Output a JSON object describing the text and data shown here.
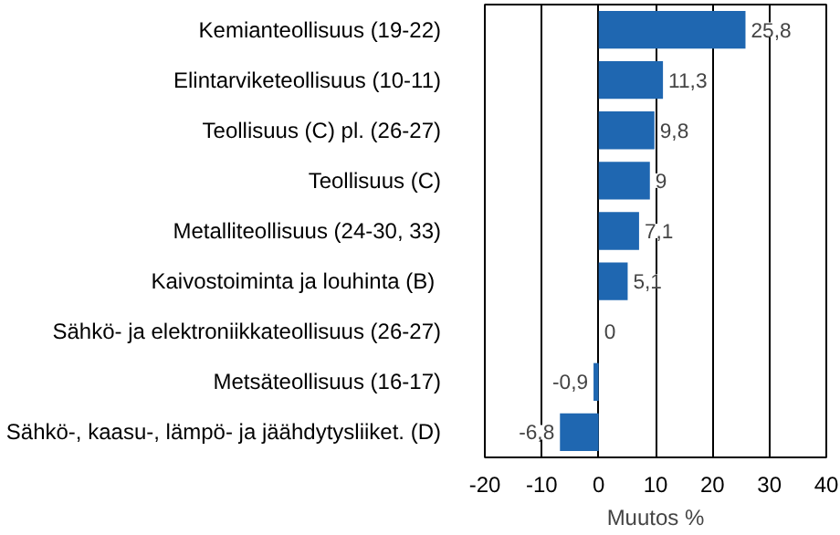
{
  "chart_data": {
    "type": "bar",
    "orientation": "horizontal",
    "xlabel": "Muutos %",
    "categories": [
      "Kemianteollisuus (19-22)",
      "Elintarviketeollisuus (10-11)",
      "Teollisuus (C) pl. (26-27)",
      "Teollisuus (C)",
      "Metalliteollisuus (24-30, 33)",
      "Kaivostoiminta  ja louhinta (B)",
      "Sähkö- ja elektroniikkateollisuus (26-27)",
      "Metsäteollisuus (16-17)",
      "Sähkö-, kaasu-, lämpö- ja jäähdytysliiket. (D)"
    ],
    "values": [
      25.8,
      11.3,
      9.8,
      9,
      7.1,
      5.1,
      0,
      -0.9,
      -6.8
    ],
    "value_labels": [
      "25,8",
      "11,3",
      "9,8",
      "9",
      "7,1",
      "5,1",
      "0",
      "-0,9",
      "-6,8"
    ],
    "color": "#1f67b1",
    "xlim": [
      -20,
      40
    ],
    "xticks": [
      -20,
      -10,
      0,
      10,
      20,
      30,
      40
    ],
    "grid": "x"
  }
}
